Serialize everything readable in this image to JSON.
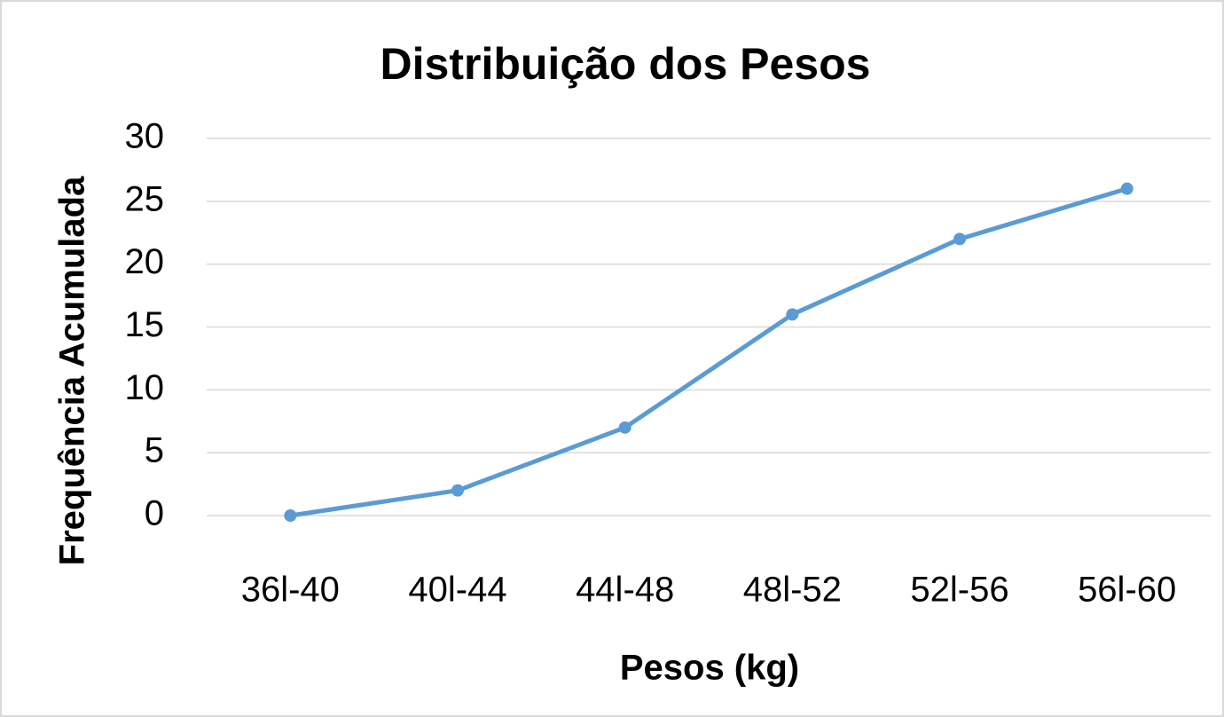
{
  "chart_data": {
    "type": "line",
    "title": "Distribuição dos Pesos",
    "x_label": "Pesos (kg)",
    "y_label": "Frequência Acumulada",
    "categories": [
      "36l-40",
      "40l-44",
      "44l-48",
      "48l-52",
      "52l-56",
      "56l-60"
    ],
    "series": [
      {
        "name": "Frequência Acumulada",
        "color": "#5b9bd5",
        "values": [
          0,
          2,
          7,
          16,
          22,
          26
        ]
      }
    ],
    "ylim": [
      0,
      30
    ],
    "yticks": [
      0,
      5,
      10,
      15,
      20,
      25,
      30
    ],
    "grid": true
  }
}
